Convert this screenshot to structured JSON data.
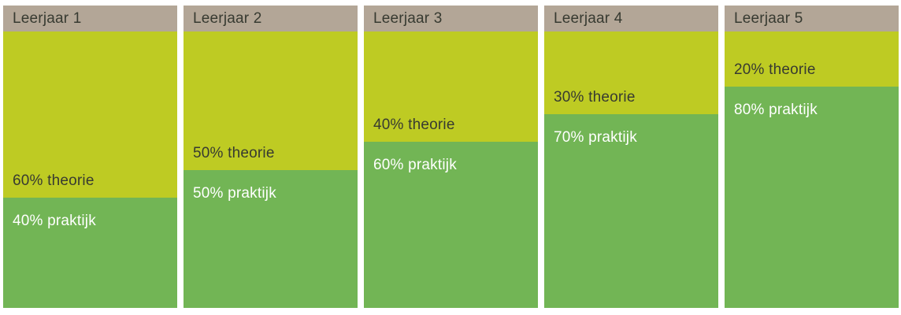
{
  "chart_data": {
    "type": "bar",
    "stacked": true,
    "orientation": "vertical",
    "title": "",
    "categories": [
      "Leerjaar 1",
      "Leerjaar 2",
      "Leerjaar 3",
      "Leerjaar 4",
      "Leerjaar 5"
    ],
    "series": [
      {
        "name": "theorie",
        "values": [
          60,
          50,
          40,
          30,
          20
        ],
        "unit": "%",
        "color": "#becb23"
      },
      {
        "name": "praktijk",
        "values": [
          40,
          50,
          60,
          70,
          80
        ],
        "unit": "%",
        "color": "#72b555"
      }
    ],
    "value_range": [
      0,
      100
    ],
    "legend": "none",
    "grid": false,
    "labels_on_bars": true
  },
  "columns": [
    {
      "header": "Leerjaar 1",
      "theorie_pct": 60,
      "praktijk_pct": 40,
      "theorie_label": "60% theorie",
      "praktijk_label": "40% praktijk"
    },
    {
      "header": "Leerjaar 2",
      "theorie_pct": 50,
      "praktijk_pct": 50,
      "theorie_label": "50% theorie",
      "praktijk_label": "50% praktijk"
    },
    {
      "header": "Leerjaar 3",
      "theorie_pct": 40,
      "praktijk_pct": 60,
      "theorie_label": "40% theorie",
      "praktijk_label": "60% praktijk"
    },
    {
      "header": "Leerjaar 4",
      "theorie_pct": 30,
      "praktijk_pct": 70,
      "theorie_label": "30% theorie",
      "praktijk_label": "70% praktijk"
    },
    {
      "header": "Leerjaar 5",
      "theorie_pct": 20,
      "praktijk_pct": 80,
      "theorie_label": "20% theorie",
      "praktijk_label": "80% praktijk"
    }
  ],
  "colors": {
    "page_bg": "#ffffff",
    "header_bg": "#b3a697",
    "header_text": "#373a31",
    "theorie_bg": "#becb23",
    "theorie_text": "#373a31",
    "praktijk_bg": "#72b555",
    "praktijk_text": "#ffffff"
  }
}
